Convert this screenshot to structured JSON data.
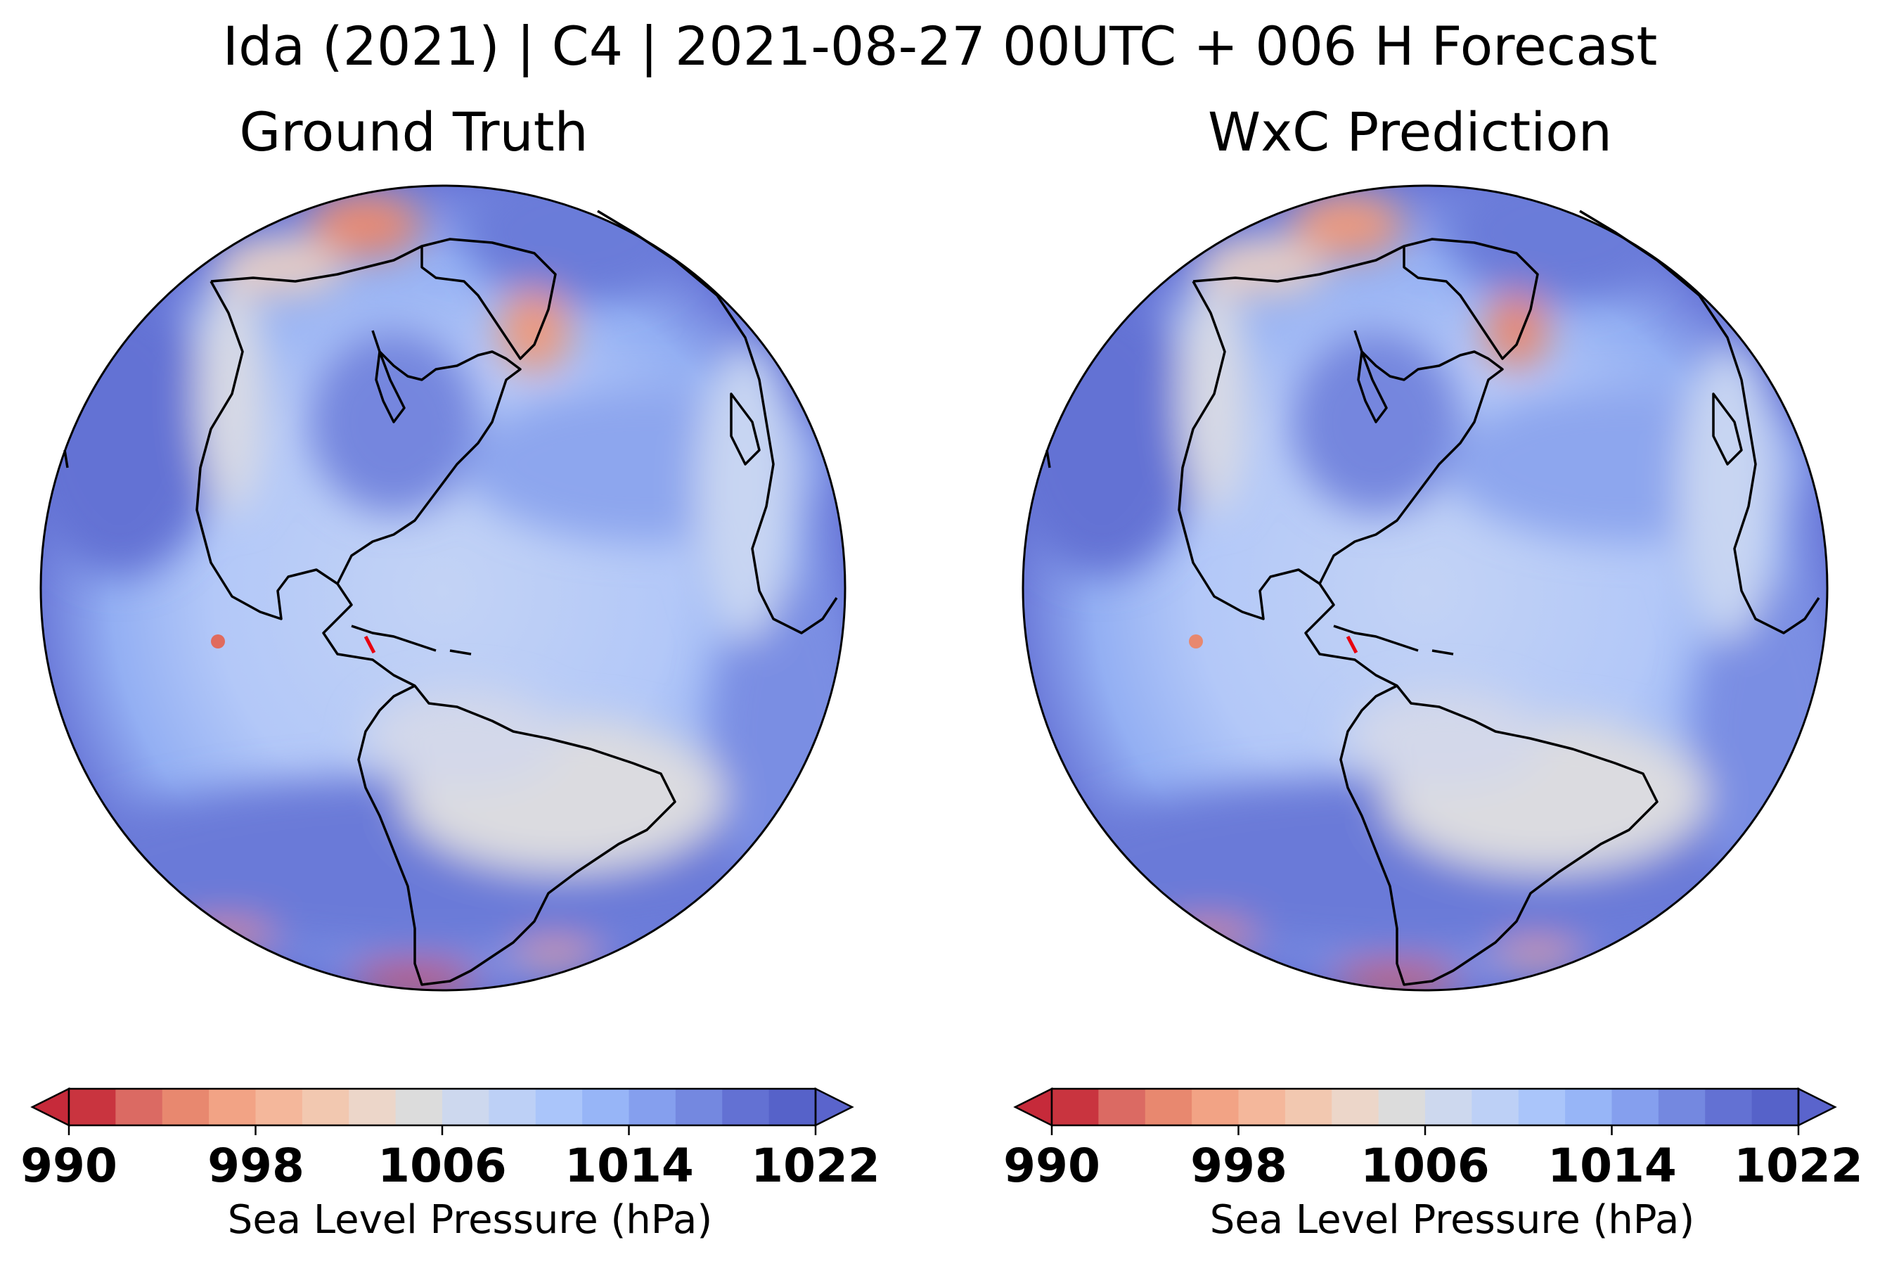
{
  "figure": {
    "title": "Ida (2021) | C4 | 2021-08-27 00UTC + 006 H Forecast"
  },
  "panels": [
    {
      "title": "Ground Truth",
      "colorbar": {
        "label": "Sea Level Pressure (hPa)",
        "ticks": [
          "990",
          "998",
          "1006",
          "1014",
          "1022"
        ]
      }
    },
    {
      "title": "WxC Prediction",
      "colorbar": {
        "label": "Sea Level Pressure (hPa)",
        "ticks": [
          "990",
          "998",
          "1006",
          "1014",
          "1022"
        ]
      }
    }
  ],
  "colormap": {
    "name": "coolwarm_r",
    "vmin": 990,
    "vmax": 1022,
    "levels": [
      990,
      992,
      994,
      996,
      998,
      1000,
      1002,
      1004,
      1006,
      1008,
      1010,
      1012,
      1014,
      1016,
      1018,
      1020,
      1022
    ],
    "extend": "both",
    "colors": [
      "#c9343f",
      "#db6a63",
      "#e8886f",
      "#f2a385",
      "#f4b79b",
      "#f2c8b0",
      "#ecd6c9",
      "#dcdcdc",
      "#cdd8ee",
      "#bdd0f6",
      "#aac5fa",
      "#97b5f7",
      "#859fee",
      "#7488e0",
      "#6371d3",
      "#5662c9"
    ],
    "over_color": "#5a64cc",
    "under_color": "#c62a3a"
  },
  "map": {
    "projection": "orthographic",
    "track_color": "#e8000f"
  }
}
